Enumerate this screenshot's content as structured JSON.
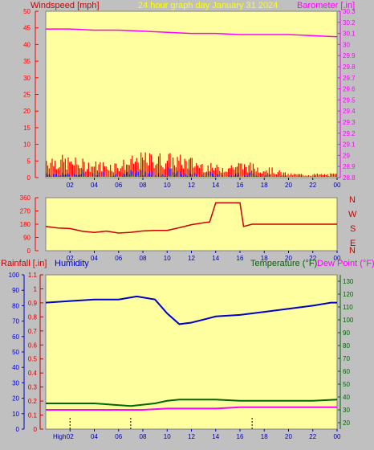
{
  "header": {
    "title": "24 hour graph day   January 31 2024",
    "left_label": "Windspeed [mph]",
    "right_label": "Barometer [.in]"
  },
  "mid_panel": {
    "direction_labels": [
      "N",
      "W",
      "S",
      "E",
      "N"
    ]
  },
  "lower_panel": {
    "rainfall_label": "Rainfall [.in]",
    "humidity_label": "Humidity",
    "temperature_label": "Temperature (°F)",
    "dewpoint_label": "Dew Point (°F)",
    "extra_label": "High"
  },
  "colors": {
    "background": "#c0c0c0",
    "plot_bg": "#ffffa0",
    "wind_gust": "#ff0000",
    "wind_avg": "#0000ff",
    "wind_low": "#008000",
    "barometer": "#ff00ff",
    "direction": "#cc0000",
    "humidity": "#0000cc",
    "temperature": "#006600",
    "dewpoint": "#ff00ff",
    "rain": "#cc0000",
    "title": "#ffff00"
  },
  "chart_data": [
    {
      "type": "line",
      "name": "wind-barometer",
      "xticks": [
        "02",
        "04",
        "06",
        "08",
        "10",
        "12",
        "14",
        "16",
        "18",
        "20",
        "22",
        "00"
      ],
      "left_axis": {
        "label": "Windspeed [mph]",
        "ticks": [
          "0",
          "5",
          "10",
          "15",
          "20",
          "25",
          "30",
          "35",
          "40",
          "45",
          "50"
        ],
        "ylim": [
          0,
          50
        ]
      },
      "right_axis": {
        "label": "Barometer [.in]",
        "ticks": [
          "28.8",
          "28.9",
          "29",
          "29.1",
          "29.2",
          "29.3",
          "29.4",
          "29.5",
          "29.6",
          "29.7",
          "29.8",
          "29.9",
          "30",
          "30.1",
          "30.2",
          "30.3"
        ],
        "ylim": [
          28.8,
          30.3
        ]
      },
      "series": [
        {
          "name": "Barometer [.in]",
          "x": [
            0,
            2,
            4,
            6,
            8,
            10,
            12,
            14,
            16,
            18,
            20,
            22,
            24
          ],
          "values": [
            30.14,
            30.14,
            30.13,
            30.13,
            30.12,
            30.11,
            30.1,
            30.1,
            30.09,
            30.09,
            30.09,
            30.08,
            30.07
          ]
        }
      ],
      "wind_gust_envelope": {
        "x": [
          0,
          2,
          4,
          6,
          8,
          10,
          12,
          14,
          16,
          18,
          20,
          22,
          24
        ],
        "values": [
          6,
          5,
          4,
          4,
          6,
          6,
          5,
          3,
          4,
          3,
          1,
          1,
          1
        ]
      }
    },
    {
      "type": "line",
      "name": "wind-direction",
      "xticks": [
        "02",
        "04",
        "06",
        "08",
        "10",
        "12",
        "14",
        "16",
        "18",
        "20",
        "22",
        "00"
      ],
      "left_axis": {
        "ticks": [
          "0",
          "90",
          "180",
          "270",
          "360"
        ],
        "ylim": [
          0,
          360
        ]
      },
      "series": [
        {
          "name": "Direction",
          "x": [
            0,
            1,
            2,
            3,
            4,
            5,
            6,
            7,
            8,
            9,
            10,
            11,
            12,
            13,
            13.5,
            14,
            14.5,
            16,
            16.3,
            17,
            18,
            20,
            22,
            24
          ],
          "values": [
            165,
            155,
            150,
            130,
            130,
            130,
            125,
            130,
            130,
            135,
            145,
            160,
            175,
            190,
            195,
            325,
            325,
            325,
            165,
            180,
            180,
            180,
            180,
            180
          ]
        }
      ]
    },
    {
      "type": "line",
      "name": "rain-humidity-temperature",
      "xticks": [
        "02",
        "04",
        "06",
        "08",
        "10",
        "12",
        "14",
        "16",
        "18",
        "20",
        "22",
        "00"
      ],
      "left_axis": {
        "label": "Rainfall [.in]",
        "ticks": [
          "0",
          "0.1",
          "0.2",
          "0.3",
          "0.4",
          "0.5",
          "0.6",
          "0.7",
          "0.8",
          "0.9",
          "1",
          "1.1"
        ],
        "ylim": [
          0,
          1.1
        ]
      },
      "humidity_axis": {
        "label": "Humidity",
        "ticks": [
          "0",
          "10",
          "20",
          "30",
          "40",
          "50",
          "60",
          "70",
          "80",
          "90",
          "100"
        ],
        "ylim": [
          0,
          100
        ]
      },
      "right_axis": {
        "label": "Temperature (°F)",
        "ticks": [
          "20",
          "30",
          "40",
          "50",
          "60",
          "70",
          "80",
          "90",
          "100",
          "110",
          "120",
          "130"
        ],
        "ylim": [
          15,
          135
        ]
      },
      "series": [
        {
          "name": "Humidity",
          "x": [
            0,
            2,
            4,
            6,
            7.5,
            9,
            10,
            11,
            12,
            13,
            14,
            16,
            18,
            20,
            22,
            23.5,
            24
          ],
          "values": [
            82,
            83,
            84,
            84,
            86,
            84,
            75,
            68,
            69,
            71,
            73,
            74,
            76,
            78,
            80,
            82,
            82
          ]
        },
        {
          "name": "Temperature (°F)",
          "x": [
            0,
            2,
            4,
            5.5,
            7,
            9,
            10,
            11,
            12,
            14,
            16,
            18,
            20,
            22,
            24
          ],
          "values": [
            35,
            35,
            35,
            34,
            33,
            35,
            37,
            38,
            38,
            38,
            37,
            37,
            37,
            37,
            38
          ]
        },
        {
          "name": "Dew Point (°F)",
          "x": [
            0,
            2,
            4,
            6,
            8,
            10,
            12,
            14,
            16,
            18,
            20,
            22,
            24
          ],
          "values": [
            30,
            30,
            30,
            30,
            30,
            31,
            31,
            31,
            32,
            32,
            32,
            32,
            32
          ]
        }
      ],
      "rain_markers": [
        2,
        7,
        17
      ]
    }
  ]
}
